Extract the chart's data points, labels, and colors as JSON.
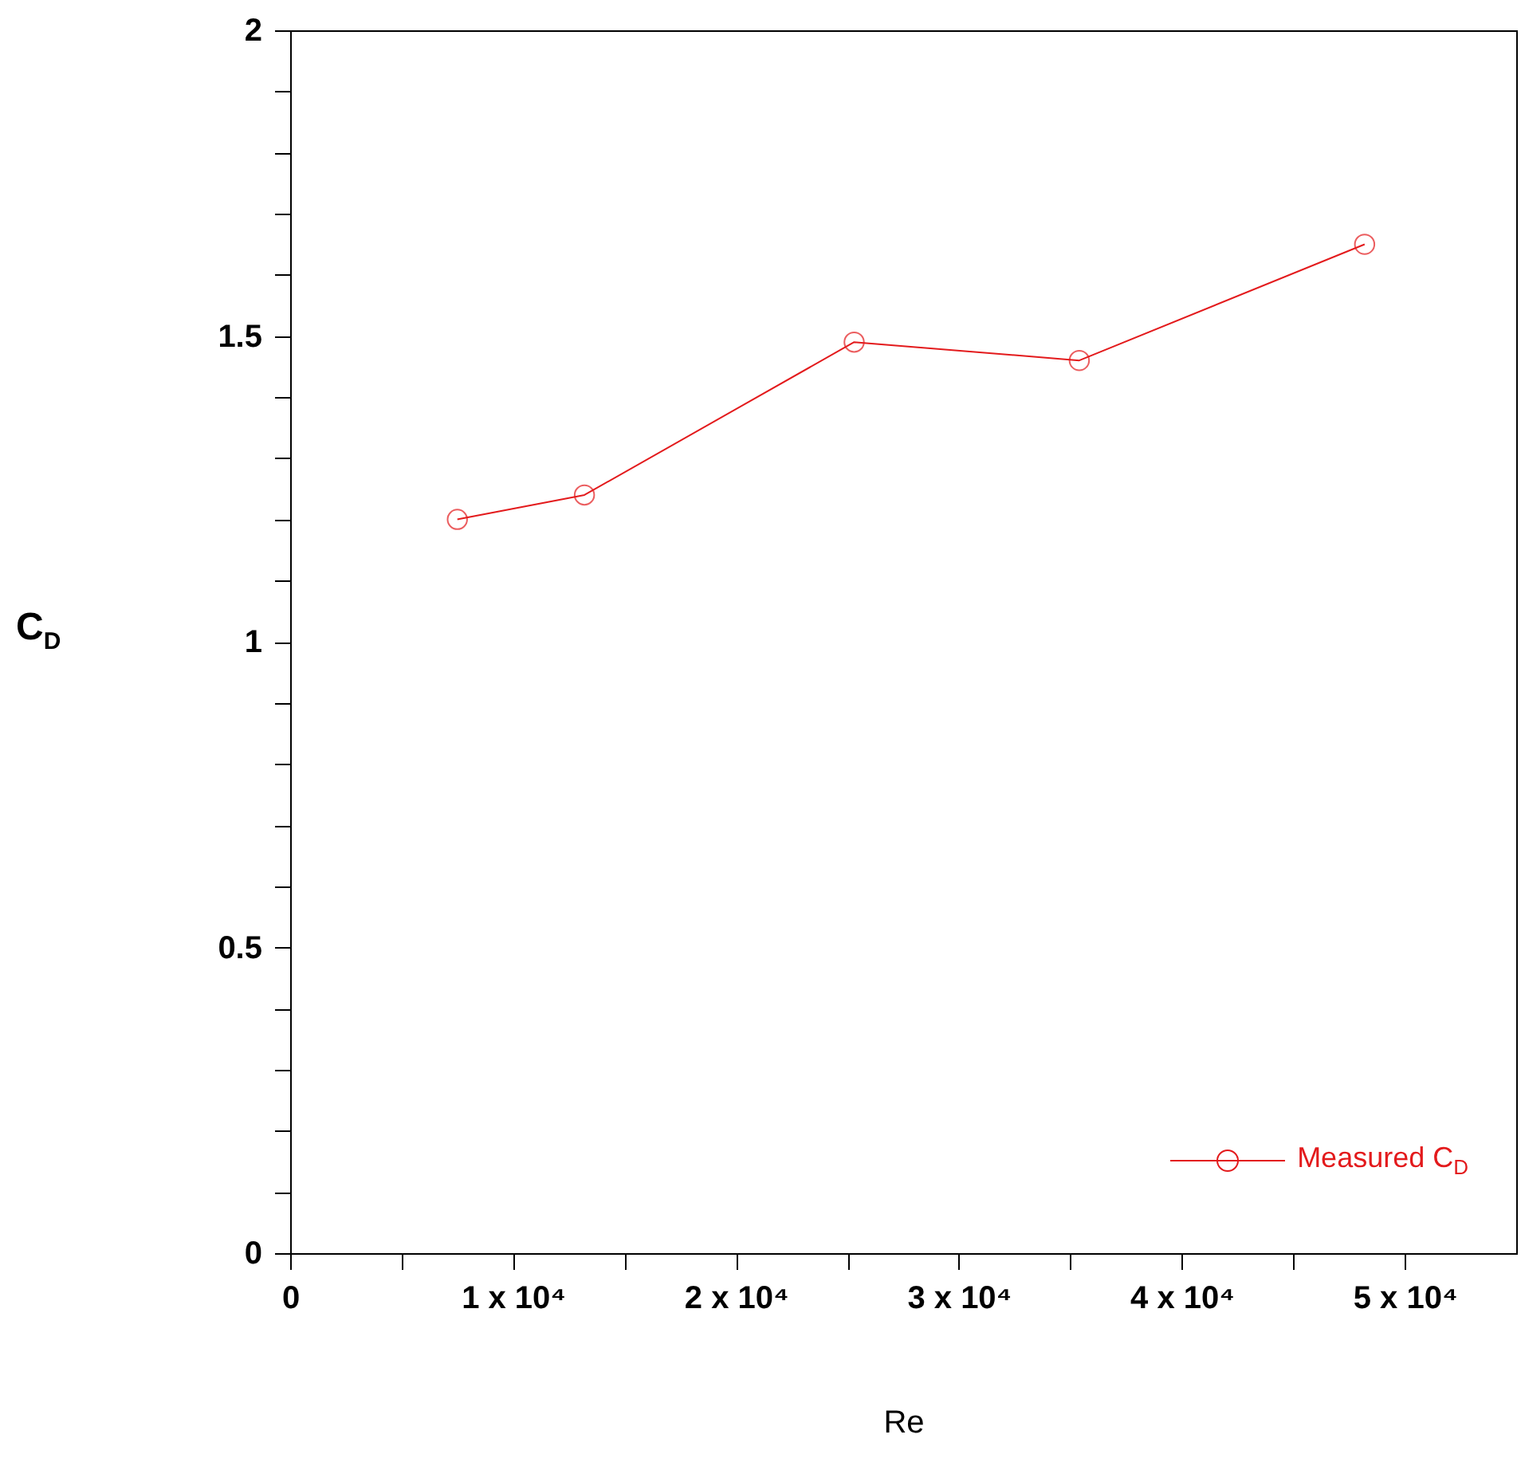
{
  "chart_data": {
    "type": "line",
    "xlabel": "Re",
    "ylabel": "C$_{D}$",
    "x": [
      7500,
      13200,
      25300,
      35400,
      48200
    ],
    "series": [
      {
        "name": "Measured C$_{D}$",
        "color": "#e31a1c",
        "values": [
          1.2,
          1.24,
          1.49,
          1.46,
          1.65
        ]
      }
    ],
    "xlim": [
      0,
      55000
    ],
    "xticks": [
      0,
      {
        "value": 5000,
        "label": null
      },
      {
        "value": 10000,
        "label": "1 x 10⁴"
      },
      {
        "value": 15000,
        "label": null
      },
      {
        "value": 20000,
        "label": "2 x 10⁴"
      },
      {
        "value": 25000,
        "label": null
      },
      {
        "value": 30000,
        "label": "3 x 10⁴"
      },
      {
        "value": 35000,
        "label": null
      },
      {
        "value": 40000,
        "label": "4 x 10⁴"
      },
      {
        "value": 45000,
        "label": null
      },
      {
        "value": 50000,
        "label": "5 x 10⁴"
      }
    ],
    "ylim": [
      0,
      2
    ],
    "yticks": [
      0,
      {
        "value": 0.1,
        "label": null
      },
      {
        "value": 0.2,
        "label": null
      },
      {
        "value": 0.3,
        "label": null
      },
      {
        "value": 0.4,
        "label": null
      },
      0.5,
      {
        "value": 0.6,
        "label": null
      },
      {
        "value": 0.7,
        "label": null
      },
      {
        "value": 0.8,
        "label": null
      },
      {
        "value": 0.9,
        "label": null
      },
      1,
      {
        "value": 1.1,
        "label": null
      },
      {
        "value": 1.2,
        "label": null
      },
      {
        "value": 1.3,
        "label": null
      },
      {
        "value": 1.4,
        "label": null
      },
      1.5,
      {
        "value": 1.6,
        "label": null
      },
      {
        "value": 1.7,
        "label": null
      },
      {
        "value": 1.8,
        "label": null
      },
      {
        "value": 1.9,
        "label": null
      },
      2
    ],
    "grid": false,
    "legend": "bottom right",
    "marker": "circle",
    "line_style": "solid"
  }
}
